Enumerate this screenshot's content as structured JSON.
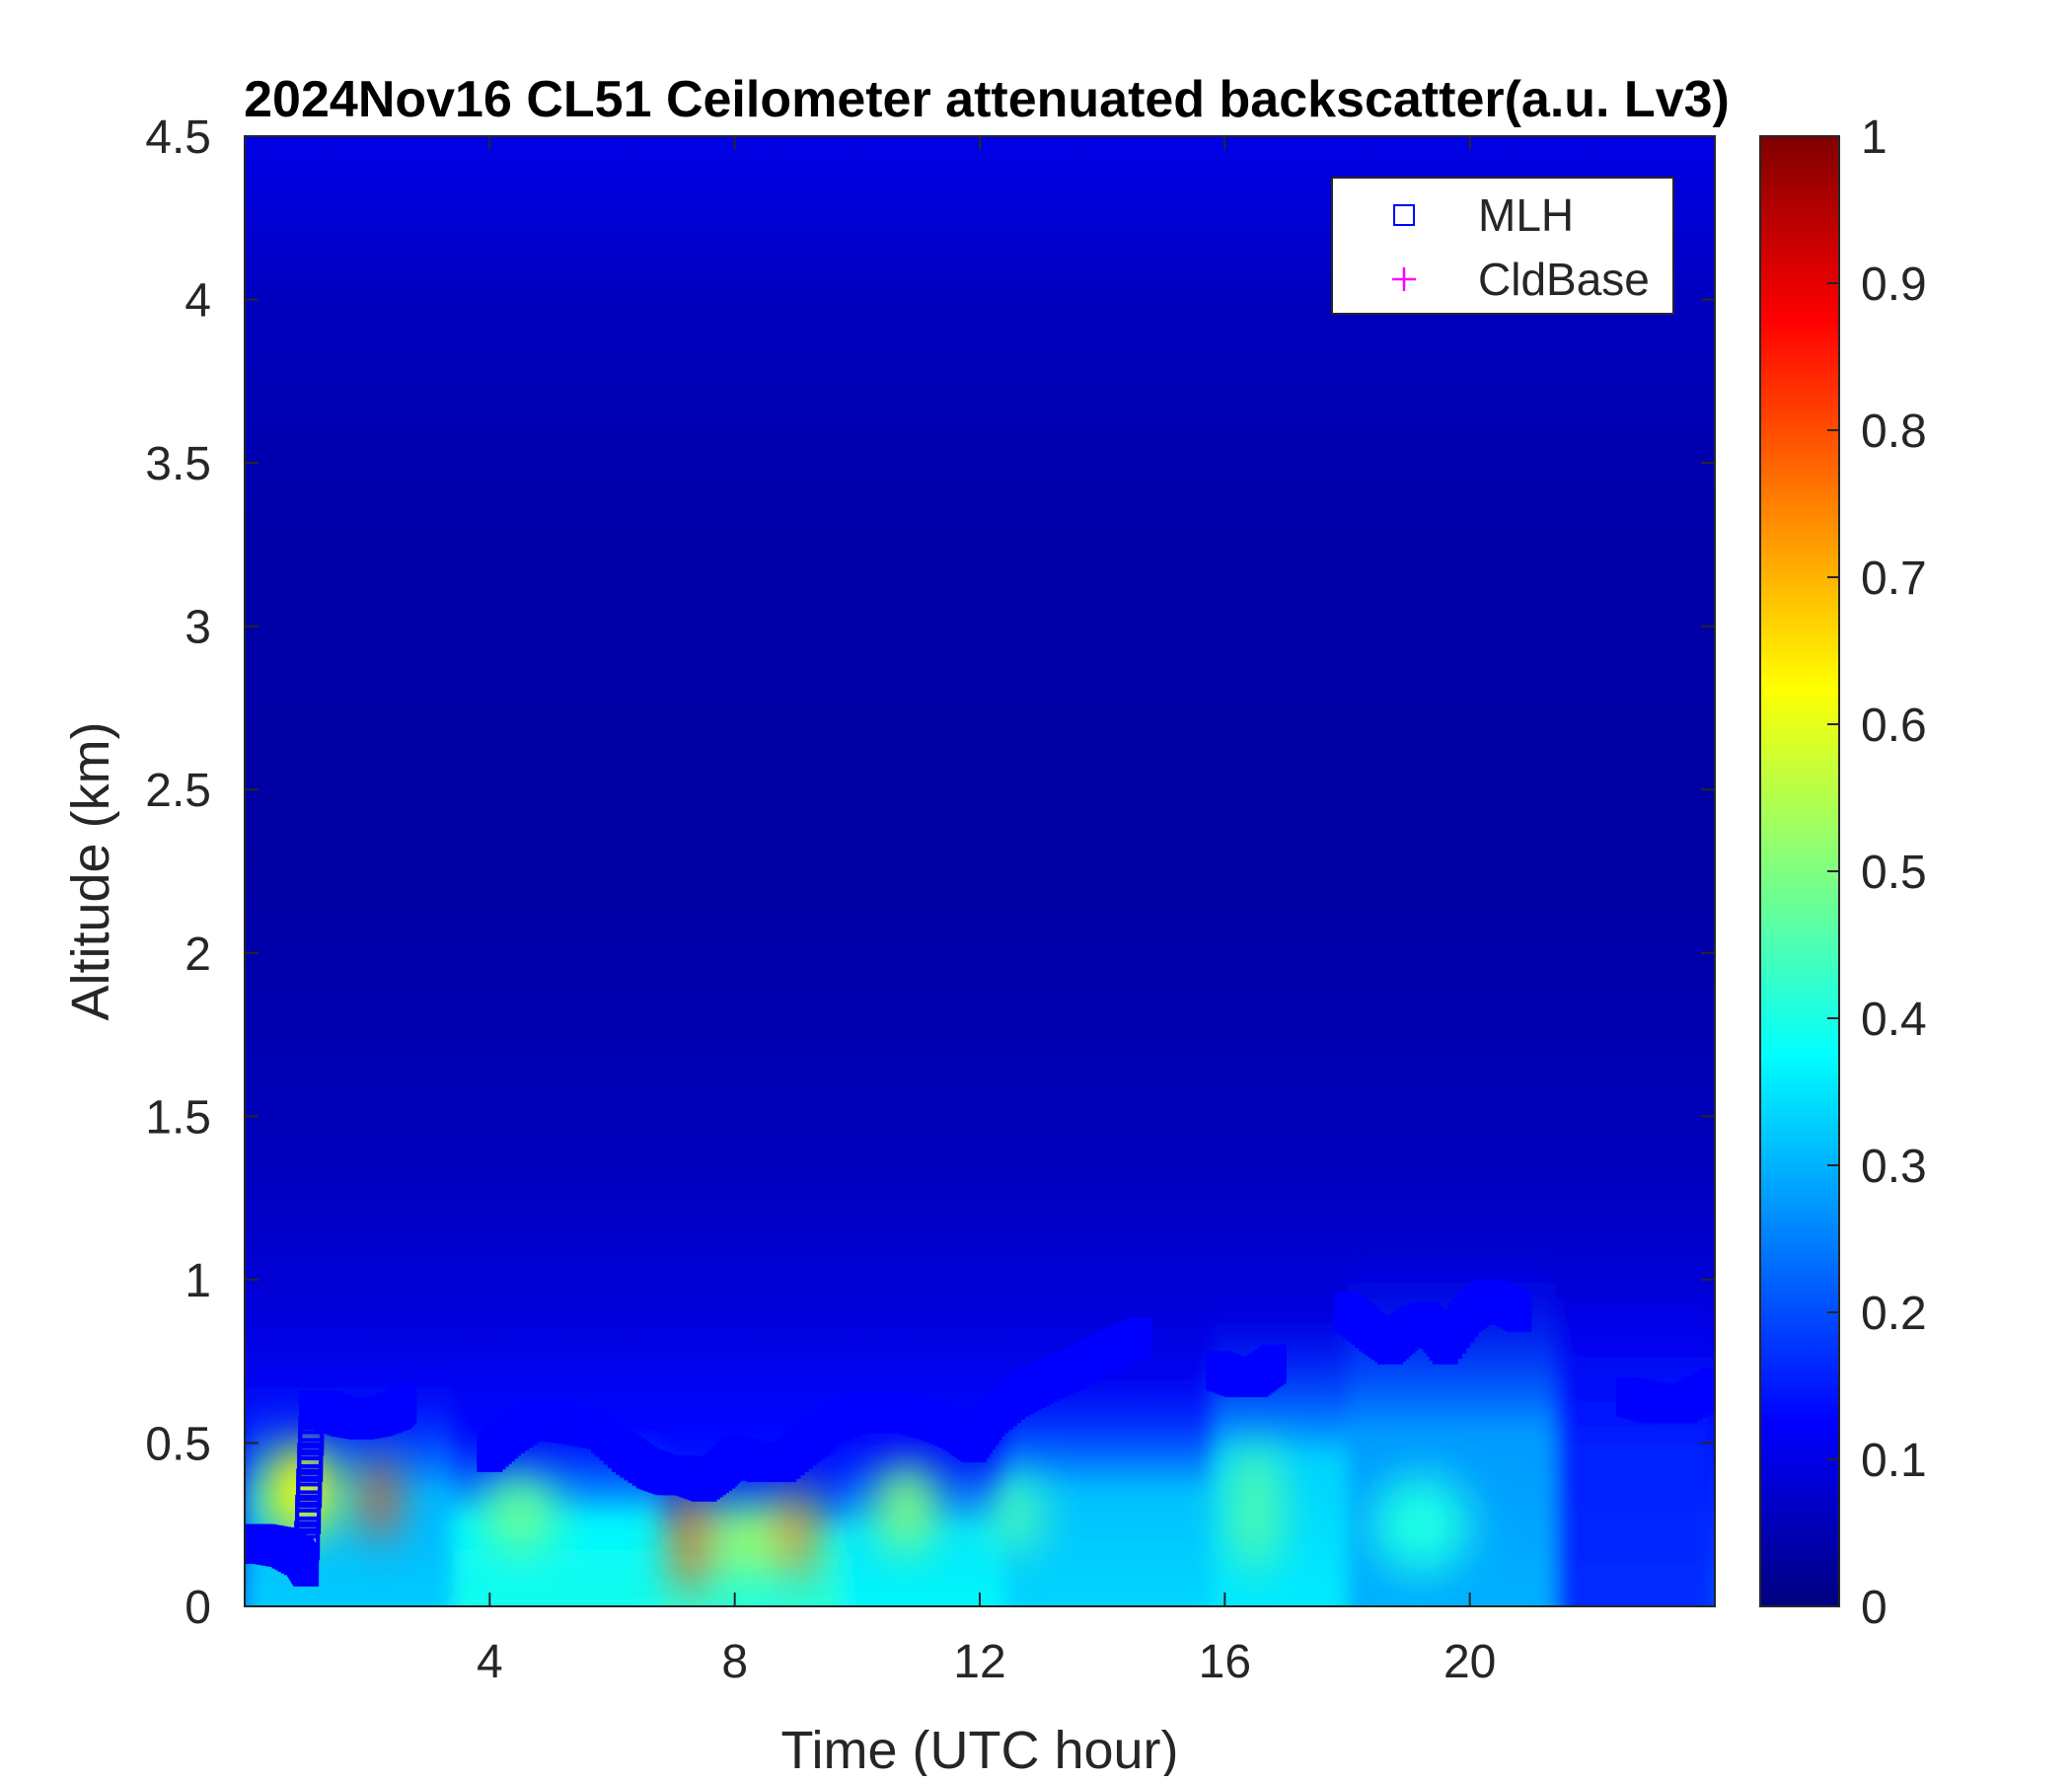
{
  "chart_data": {
    "type": "heatmap",
    "title": "2024Nov16 CL51 Ceilometer attenuated backscatter(a.u. Lv3)",
    "xlabel": "Time (UTC hour)",
    "ylabel": "Altitude (km)",
    "xlim": [
      0,
      24
    ],
    "ylim": [
      0,
      4.5
    ],
    "x_ticks": [
      4,
      8,
      12,
      16,
      20
    ],
    "x_tick_labels": [
      "4",
      "8",
      "12",
      "16",
      "20"
    ],
    "y_ticks": [
      0,
      0.5,
      1,
      1.5,
      2,
      2.5,
      3,
      3.5,
      4,
      4.5
    ],
    "y_tick_labels": [
      "0",
      "0.5",
      "1",
      "1.5",
      "2",
      "2.5",
      "3",
      "3.5",
      "4",
      "4.5"
    ],
    "colorbar": {
      "colormap": "jet",
      "range": [
        0,
        1
      ],
      "ticks": [
        0,
        0.1,
        0.2,
        0.3,
        0.4,
        0.5,
        0.6,
        0.7,
        0.8,
        0.9,
        1
      ],
      "tick_labels": [
        "0",
        "0.1",
        "0.2",
        "0.3",
        "0.4",
        "0.5",
        "0.6",
        "0.7",
        "0.8",
        "0.9",
        "1"
      ]
    },
    "legend": {
      "position": "top-right",
      "entries": [
        {
          "label": "MLH",
          "marker": "square",
          "color": "#0000ff"
        },
        {
          "label": "CldBase",
          "marker": "plus",
          "color": "#ff00ff"
        }
      ]
    },
    "mlh_series": {
      "name": "MLH",
      "x": [
        0.0,
        0.3,
        0.6,
        0.9,
        1.0,
        1.1,
        1.3,
        1.6,
        1.9,
        2.2,
        2.5,
        2.6,
        4.0,
        4.3,
        4.7,
        5.2,
        5.8,
        6.2,
        6.6,
        6.9,
        7.2,
        7.5,
        7.8,
        8.0,
        8.4,
        8.8,
        9.2,
        9.6,
        10.0,
        10.4,
        10.8,
        11.2,
        11.6,
        11.9,
        12.2,
        12.6,
        13.0,
        13.5,
        14.0,
        14.6,
        15.9,
        16.2,
        16.5,
        16.8,
        18.0,
        18.4,
        18.7,
        19.0,
        19.3,
        19.6,
        20.0,
        20.3,
        20.6,
        20.8,
        22.6,
        23.0,
        23.5,
        24.0
      ],
      "y": [
        0.17,
        0.17,
        0.16,
        0.13,
        0.1,
        0.58,
        0.58,
        0.56,
        0.55,
        0.56,
        0.58,
        0.6,
        0.45,
        0.5,
        0.55,
        0.54,
        0.52,
        0.45,
        0.4,
        0.38,
        0.38,
        0.36,
        0.4,
        0.44,
        0.42,
        0.42,
        0.48,
        0.54,
        0.57,
        0.57,
        0.57,
        0.55,
        0.52,
        0.48,
        0.56,
        0.62,
        0.66,
        0.7,
        0.75,
        0.8,
        0.7,
        0.68,
        0.68,
        0.72,
        0.88,
        0.82,
        0.78,
        0.83,
        0.85,
        0.78,
        0.88,
        0.92,
        0.9,
        0.88,
        0.62,
        0.6,
        0.6,
        0.65
      ]
    },
    "cldbase_series": {
      "name": "CldBase",
      "x": [],
      "y": []
    }
  }
}
